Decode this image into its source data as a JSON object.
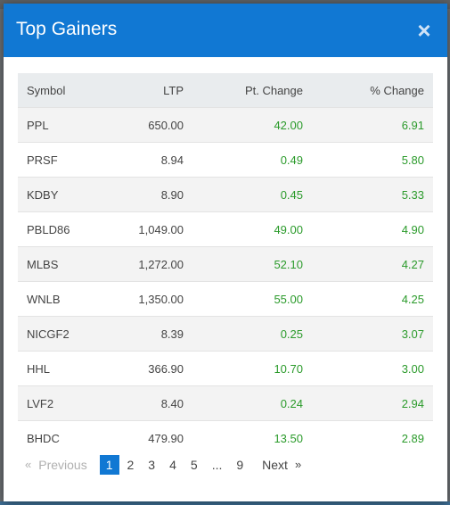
{
  "modal": {
    "title": "Top Gainers",
    "close_label": "×"
  },
  "table": {
    "headers": [
      "Symbol",
      "LTP",
      "Pt. Change",
      "% Change"
    ],
    "rows": [
      {
        "symbol": "PPL",
        "ltp": "650.00",
        "pt_change": "42.00",
        "pct_change": "6.91"
      },
      {
        "symbol": "PRSF",
        "ltp": "8.94",
        "pt_change": "0.49",
        "pct_change": "5.80"
      },
      {
        "symbol": "KDBY",
        "ltp": "8.90",
        "pt_change": "0.45",
        "pct_change": "5.33"
      },
      {
        "symbol": "PBLD86",
        "ltp": "1,049.00",
        "pt_change": "49.00",
        "pct_change": "4.90"
      },
      {
        "symbol": "MLBS",
        "ltp": "1,272.00",
        "pt_change": "52.10",
        "pct_change": "4.27"
      },
      {
        "symbol": "WNLB",
        "ltp": "1,350.00",
        "pt_change": "55.00",
        "pct_change": "4.25"
      },
      {
        "symbol": "NICGF2",
        "ltp": "8.39",
        "pt_change": "0.25",
        "pct_change": "3.07"
      },
      {
        "symbol": "HHL",
        "ltp": "366.90",
        "pt_change": "10.70",
        "pct_change": "3.00"
      },
      {
        "symbol": "LVF2",
        "ltp": "8.40",
        "pt_change": "0.24",
        "pct_change": "2.94"
      },
      {
        "symbol": "BHDC",
        "ltp": "479.90",
        "pt_change": "13.50",
        "pct_change": "2.89"
      }
    ]
  },
  "pagination": {
    "prev_chevron": "«",
    "prev_label": "Previous",
    "pages": [
      "1",
      "2",
      "3",
      "4",
      "5"
    ],
    "ellipsis": "...",
    "last_page": "9",
    "next_label": "Next",
    "next_chevron": "»",
    "current_page": "1"
  },
  "colors": {
    "header_bg": "#1178d3",
    "positive": "#2a9a2a",
    "row_stripe": "#f3f3f3"
  }
}
